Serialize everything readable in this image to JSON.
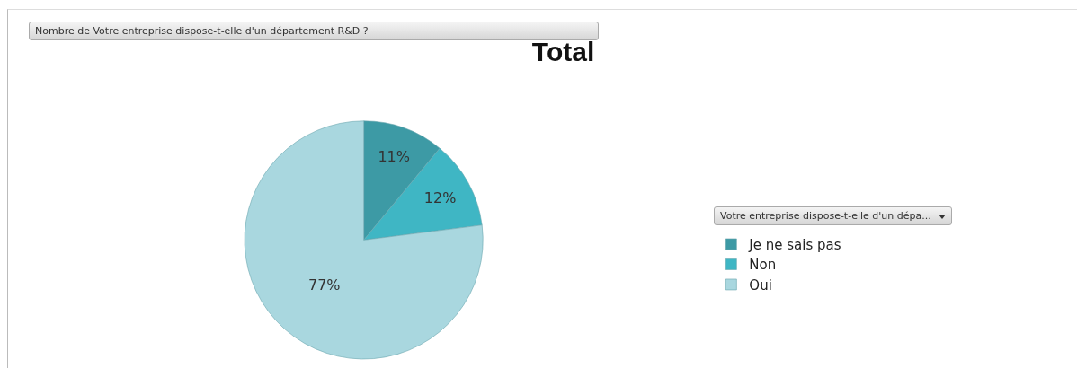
{
  "chart_data": {
    "type": "pie",
    "title": "Total",
    "legend_title": "Votre entreprise dispose-t-elle d'un dépa...",
    "annotations": [
      "Nombre de Votre entreprise dispose-t-elle d'un département  R&D  ?"
    ],
    "categories": [
      "Je ne sais pas",
      "Non",
      "Oui"
    ],
    "values": [
      11,
      12,
      77
    ],
    "value_labels": [
      "11%",
      "12%",
      "77%"
    ],
    "colors": [
      "#3d9aa5",
      "#3fb6c4",
      "#a9d7df"
    ],
    "legend": "right"
  }
}
